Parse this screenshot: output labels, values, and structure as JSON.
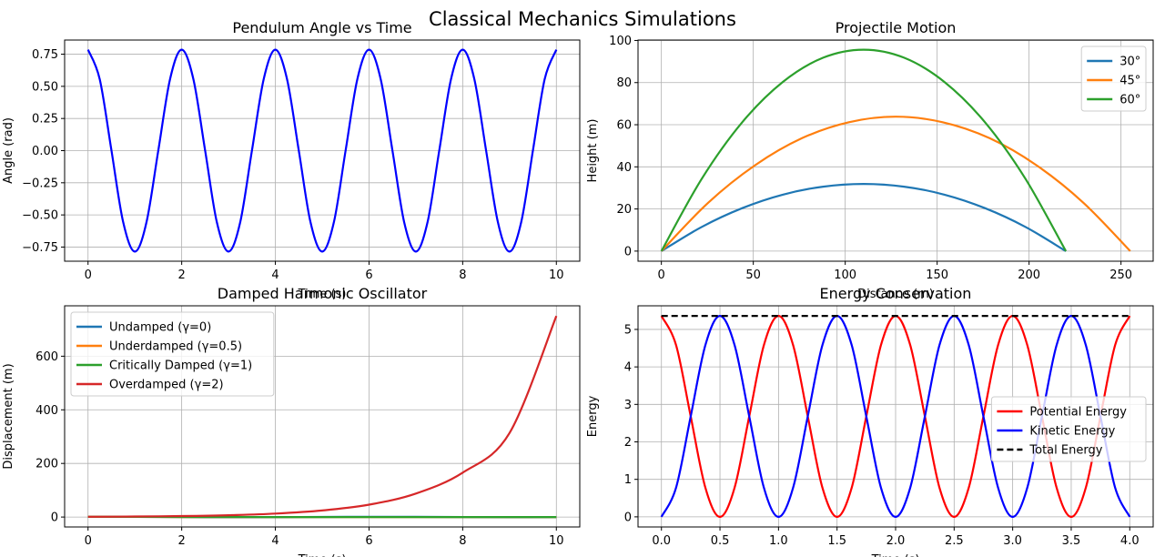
{
  "figure": {
    "title": "Classical Mechanics Simulations"
  },
  "chart_data": [
    {
      "type": "line",
      "title": "Pendulum Angle vs Time",
      "xlabel": "Time (s)",
      "ylabel": "Angle (rad)",
      "xlim": [
        -0.5,
        10.5
      ],
      "ylim": [
        -0.86,
        0.86
      ],
      "xticks": [
        0,
        2,
        4,
        6,
        8,
        10
      ],
      "xticklabels": [
        "0",
        "2",
        "4",
        "6",
        "8",
        "10"
      ],
      "yticks": [
        -0.75,
        -0.5,
        -0.25,
        0,
        0.25,
        0.5,
        0.75
      ],
      "yticklabels": [
        "−0.75",
        "−0.50",
        "−0.25",
        "0.00",
        "0.25",
        "0.50",
        "0.75"
      ],
      "grid": true,
      "legend": null,
      "series": [
        {
          "name": "",
          "color": "#0000ff",
          "style": "solid",
          "x": [
            0,
            0.25,
            0.5,
            0.75,
            1,
            1.25,
            1.5,
            1.75,
            2,
            2.25,
            2.5,
            2.75,
            3,
            3.25,
            3.5,
            3.75,
            4,
            4.25,
            4.5,
            4.75,
            5,
            5.25,
            5.5,
            5.75,
            6,
            6.25,
            6.5,
            6.75,
            7,
            7.25,
            7.5,
            7.75,
            8,
            8.25,
            8.5,
            8.75,
            9,
            9.25,
            9.5,
            9.75,
            10
          ],
          "y": [
            0.785,
            0.555,
            0,
            -0.555,
            -0.785,
            -0.555,
            0,
            0.555,
            0.785,
            0.555,
            0,
            -0.555,
            -0.785,
            -0.555,
            0,
            0.555,
            0.785,
            0.555,
            0,
            -0.555,
            -0.785,
            -0.555,
            0,
            0.555,
            0.785,
            0.555,
            0,
            -0.555,
            -0.785,
            -0.555,
            0,
            0.555,
            0.785,
            0.555,
            0,
            -0.555,
            -0.785,
            -0.555,
            0,
            0.555,
            0.785
          ]
        }
      ]
    },
    {
      "type": "line",
      "title": "Projectile Motion",
      "xlabel": "Distance (m)",
      "ylabel": "Height (m)",
      "xlim": [
        -12.7,
        267.5
      ],
      "ylim": [
        -4.8,
        100.2
      ],
      "xticks": [
        0,
        50,
        100,
        150,
        200,
        250
      ],
      "xticklabels": [
        "0",
        "50",
        "100",
        "150",
        "200",
        "250"
      ],
      "yticks": [
        0,
        20,
        40,
        60,
        80,
        100
      ],
      "yticklabels": [
        "0",
        "20",
        "40",
        "60",
        "80",
        "100"
      ],
      "grid": true,
      "legend": "top-right",
      "series": [
        {
          "name": "30°",
          "color": "#1f77b4",
          "style": "solid",
          "x": [
            0,
            22,
            44,
            66,
            88,
            110,
            132,
            154,
            176,
            198,
            220
          ],
          "y": [
            0,
            11.5,
            20.4,
            26.8,
            30.6,
            31.9,
            30.6,
            26.8,
            20.4,
            11.5,
            0
          ]
        },
        {
          "name": "45°",
          "color": "#ff7f0e",
          "style": "solid",
          "x": [
            0,
            25.5,
            51,
            76.5,
            102,
            127.5,
            153,
            178.5,
            204,
            229.5,
            255
          ],
          "y": [
            0,
            23,
            40.8,
            53.6,
            61.2,
            63.8,
            61.2,
            53.6,
            40.8,
            23,
            0
          ]
        },
        {
          "name": "60°",
          "color": "#2ca02c",
          "style": "solid",
          "x": [
            0,
            22,
            44,
            66,
            88,
            110,
            132,
            154,
            176,
            198,
            220
          ],
          "y": [
            0,
            34.4,
            61.2,
            80.3,
            91.8,
            95.6,
            91.8,
            80.3,
            61.2,
            34.4,
            0
          ]
        }
      ]
    },
    {
      "type": "line",
      "title": "Damped Harmonic Oscillator",
      "xlabel": "Time (s)",
      "ylabel": "Displacement (m)",
      "xlim": [
        -0.5,
        10.5
      ],
      "ylim": [
        -37,
        788
      ],
      "xticks": [
        0,
        2,
        4,
        6,
        8,
        10
      ],
      "xticklabels": [
        "0",
        "2",
        "4",
        "6",
        "8",
        "10"
      ],
      "yticks": [
        0,
        200,
        400,
        600
      ],
      "yticklabels": [
        "0",
        "200",
        "400",
        "600"
      ],
      "grid": true,
      "legend": "top-left",
      "series": [
        {
          "name": "Undamped (γ=0)",
          "color": "#1f77b4",
          "style": "solid",
          "x": [
            0,
            1,
            2,
            3,
            4,
            5,
            6,
            7,
            8,
            9,
            10
          ],
          "y": [
            1,
            0.54,
            -0.42,
            -0.99,
            -0.65,
            0.28,
            0.96,
            0.75,
            -0.15,
            -0.91,
            -0.84
          ]
        },
        {
          "name": "Underdamped (γ=0.5)",
          "color": "#ff7f0e",
          "style": "solid",
          "x": [
            0,
            1,
            2,
            3,
            4,
            5,
            6,
            7,
            8,
            9,
            10
          ],
          "y": [
            1,
            0.6,
            0.05,
            -0.2,
            -0.15,
            0.02,
            0.08,
            0.04,
            -0.01,
            -0.02,
            -0.01
          ]
        },
        {
          "name": "Critically Damped (γ=1)",
          "color": "#2ca02c",
          "style": "solid",
          "x": [
            0,
            1,
            2,
            3,
            4,
            5,
            6,
            7,
            8,
            9,
            10
          ],
          "y": [
            1,
            0.74,
            0.41,
            0.2,
            0.09,
            0.04,
            0.02,
            0.01,
            0,
            0,
            0
          ]
        },
        {
          "name": "Overdamped (γ=2)",
          "color": "#d62728",
          "style": "solid",
          "x": [
            0,
            1,
            2,
            3,
            4,
            5,
            6,
            7,
            8,
            9,
            10
          ],
          "y": [
            1,
            1.9,
            3.6,
            6.8,
            12.9,
            24.5,
            46.3,
            87.6,
            165.7,
            313.5,
            750
          ]
        }
      ]
    },
    {
      "type": "line",
      "title": "Energy Conservation",
      "xlabel": "Time (s)",
      "ylabel": "Energy",
      "xlim": [
        -0.2,
        4.2
      ],
      "ylim": [
        -0.27,
        5.63
      ],
      "xticks": [
        0,
        0.5,
        1,
        1.5,
        2,
        2.5,
        3,
        3.5,
        4
      ],
      "xticklabels": [
        "0.0",
        "0.5",
        "1.0",
        "1.5",
        "2.0",
        "2.5",
        "3.0",
        "3.5",
        "4.0"
      ],
      "yticks": [
        0,
        1,
        2,
        3,
        4,
        5
      ],
      "yticklabels": [
        "0",
        "1",
        "2",
        "3",
        "4",
        "5"
      ],
      "grid": true,
      "legend": "center-right",
      "series": [
        {
          "name": "Potential Energy",
          "color": "#ff0000",
          "style": "solid",
          "x": [
            0,
            0.125,
            0.25,
            0.375,
            0.5,
            0.625,
            0.75,
            0.875,
            1,
            1.125,
            1.25,
            1.375,
            1.5,
            1.625,
            1.75,
            1.875,
            2,
            2.125,
            2.25,
            2.375,
            2.5,
            2.625,
            2.75,
            2.875,
            3,
            3.125,
            3.25,
            3.375,
            3.5,
            3.625,
            3.75,
            3.875,
            4
          ],
          "y": [
            5.36,
            4.58,
            2.68,
            0.78,
            0,
            0.78,
            2.68,
            4.58,
            5.36,
            4.58,
            2.68,
            0.78,
            0,
            0.78,
            2.68,
            4.58,
            5.36,
            4.58,
            2.68,
            0.78,
            0,
            0.78,
            2.68,
            4.58,
            5.36,
            4.58,
            2.68,
            0.78,
            0,
            0.78,
            2.68,
            4.58,
            5.36
          ]
        },
        {
          "name": "Kinetic Energy",
          "color": "#0000ff",
          "style": "solid",
          "x": [
            0,
            0.125,
            0.25,
            0.375,
            0.5,
            0.625,
            0.75,
            0.875,
            1,
            1.125,
            1.25,
            1.375,
            1.5,
            1.625,
            1.75,
            1.875,
            2,
            2.125,
            2.25,
            2.375,
            2.5,
            2.625,
            2.75,
            2.875,
            3,
            3.125,
            3.25,
            3.375,
            3.5,
            3.625,
            3.75,
            3.875,
            4
          ],
          "y": [
            0,
            0.78,
            2.68,
            4.58,
            5.36,
            4.58,
            2.68,
            0.78,
            0,
            0.78,
            2.68,
            4.58,
            5.36,
            4.58,
            2.68,
            0.78,
            0,
            0.78,
            2.68,
            4.58,
            5.36,
            4.58,
            2.68,
            0.78,
            0,
            0.78,
            2.68,
            4.58,
            5.36,
            4.58,
            2.68,
            0.78,
            0
          ]
        },
        {
          "name": "Total Energy",
          "color": "#000000",
          "style": "dashed",
          "x": [
            0,
            4
          ],
          "y": [
            5.36,
            5.36
          ]
        }
      ]
    }
  ]
}
